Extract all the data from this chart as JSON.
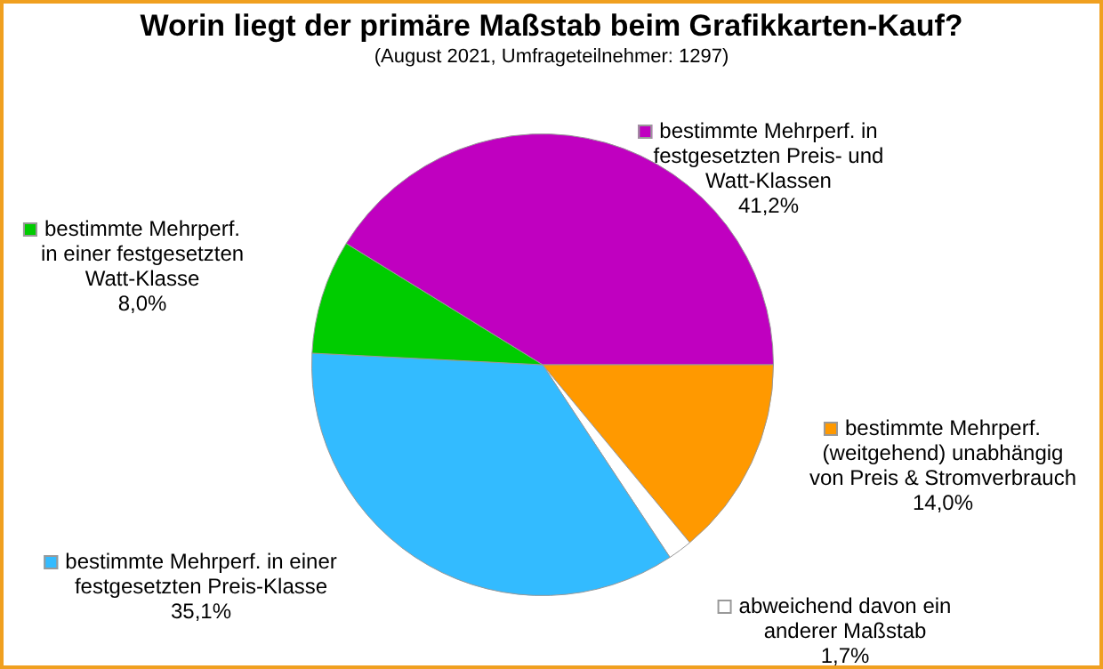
{
  "chart_data": {
    "type": "pie",
    "title": "Worin liegt der primäre Maßstab beim Grafikkarten-Kauf?",
    "subtitle": "(August 2021, Umfrageteilnehmer: 1297)",
    "categories": [
      "bestimmte Mehrperf. in\nfestgesetzten Preis- und\nWatt-Klassen",
      "bestimmte Mehrperf.\n(weitgehend) unabhängig\nvon Preis & Stromverbrauch",
      "abweichend davon ein\nanderer Maßstab",
      "bestimmte Mehrperf. in einer\nfestgesetzten Preis-Klasse",
      "bestimmte Mehrperf.\nin einer festgesetzten\nWatt-Klasse"
    ],
    "values": [
      41.2,
      14.0,
      1.7,
      35.1,
      8.0
    ],
    "colors": [
      "#c000c0",
      "#ff9900",
      "#ffffff",
      "#33bbff",
      "#00cc00"
    ],
    "value_labels": [
      "41,2%",
      "14,0%",
      "1,7%",
      "35,1%",
      "8,0%"
    ],
    "legend": "right"
  }
}
